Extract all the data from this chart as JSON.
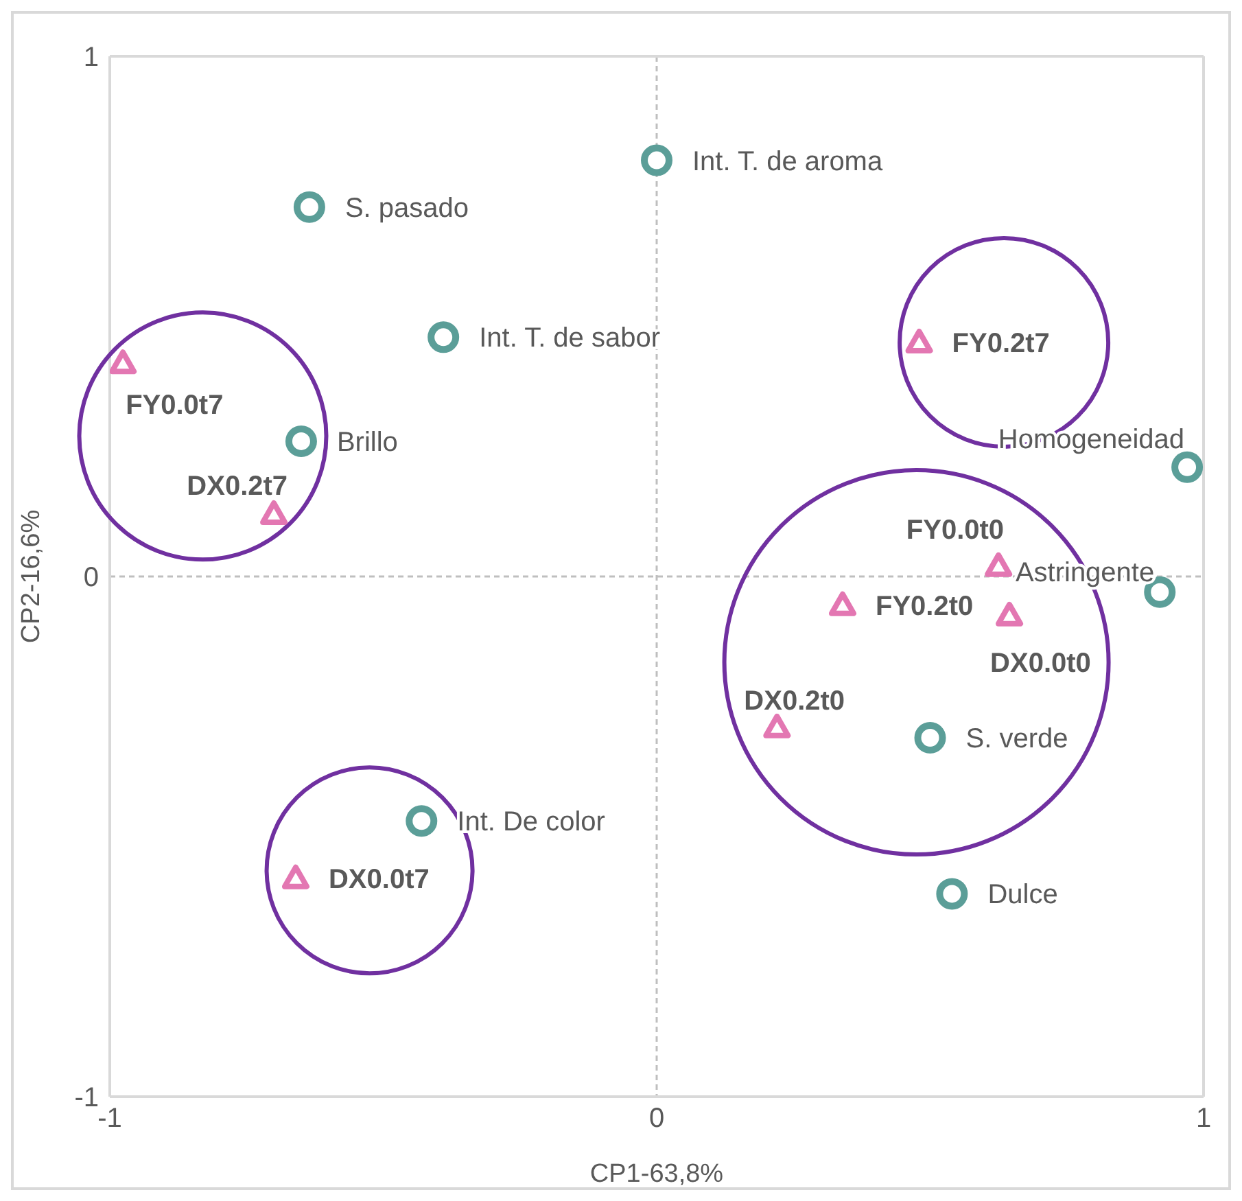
{
  "chart_data": {
    "type": "scatter",
    "xlabel": "CP1-63,8%",
    "ylabel": "CP2-16,6%",
    "xlim": [
      -1,
      1
    ],
    "xticks": [
      -1,
      0,
      1
    ],
    "ylim": [
      -1,
      1
    ],
    "yticks": [
      -1,
      0,
      1
    ],
    "grid": true,
    "legend": false,
    "series": [
      {
        "color": "#5b9e98",
        "marker": "circle",
        "x": [
          0,
          -0.635,
          -0.39,
          -0.65,
          0.97,
          0.92,
          0.5,
          -0.43,
          0.54
        ],
        "values": [
          0.8,
          0.71,
          0.46,
          0.26,
          0.21,
          -0.03,
          -0.31,
          -0.47,
          -0.61
        ],
        "value_labels": [
          "Int. T. de aroma",
          "S. pasado",
          "Int. T. de sabor",
          "Brillo",
          "Homogeneidad",
          "Astringente",
          "S. verde",
          "Int. De color",
          "Dulce"
        ]
      },
      {
        "color": "#e377b2",
        "marker": "triangle",
        "x": [
          -0.976,
          -0.7,
          0.48,
          0.625,
          0.34,
          0.645,
          0.22,
          -0.66
        ],
        "values": [
          0.41,
          0.12,
          0.45,
          0.02,
          -0.055,
          -0.075,
          -0.29,
          -0.58
        ],
        "value_labels": [
          "FY0.0t7",
          "DX0.2t7",
          "FY0.2t7",
          "FY0.0t0",
          "FY0.2t0",
          "DX0.0t0",
          "DX0.2t0",
          "DX0.0t7"
        ]
      }
    ]
  }
}
